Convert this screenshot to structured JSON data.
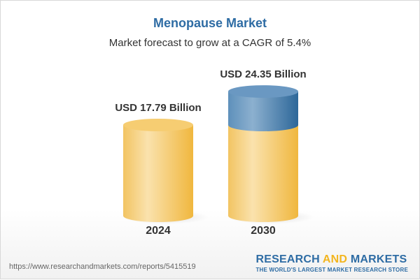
{
  "header": {
    "title": "Menopause Market",
    "subtitle": "Market forecast to grow at a CAGR of 5.4%"
  },
  "chart_data": {
    "type": "bar",
    "style": "3d-cylinder",
    "categories": [
      "2024",
      "2030"
    ],
    "values": [
      17.79,
      24.35
    ],
    "data_labels": [
      "USD 17.79 Billion",
      "USD 24.35 Billion"
    ],
    "unit": "USD Billion",
    "colors": {
      "base": "#f3c15a",
      "growth": "#3f7fb0"
    },
    "cagr": "5.4%"
  },
  "footer": {
    "url": "https://www.researchandmarkets.com/reports/5415519",
    "logo_part1": "RESEARCH ",
    "logo_and": "AND",
    "logo_part2": " MARKETS",
    "tagline": "THE WORLD'S LARGEST MARKET RESEARCH STORE"
  }
}
